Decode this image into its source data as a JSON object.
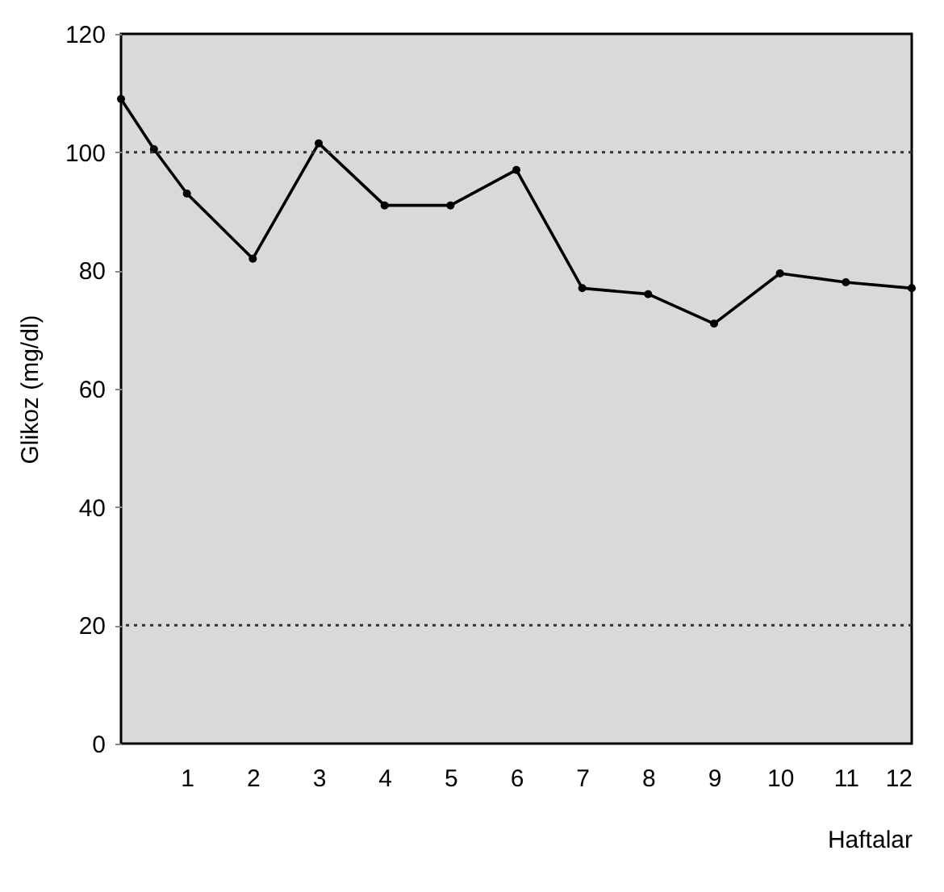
{
  "chart_data": {
    "type": "line",
    "xlabel": "Haftalar",
    "ylabel": "Glikoz (mg/dl)",
    "x": [
      0,
      0.5,
      1,
      2,
      3,
      4,
      5,
      6,
      7,
      8,
      9,
      10,
      11,
      12
    ],
    "series": [
      {
        "color": "#000000",
        "values": [
          109,
          100.5,
          93,
          82,
          101.5,
          91,
          91,
          97,
          77,
          76,
          71,
          79.5,
          78,
          77
        ]
      }
    ],
    "xlim": [
      0,
      12
    ],
    "xticks": [
      1,
      2,
      3,
      4,
      5,
      6,
      7,
      8,
      9,
      10,
      11,
      12
    ],
    "ylim": [
      0,
      120
    ],
    "yticks": [
      0,
      20,
      40,
      60,
      80,
      100,
      120
    ],
    "marker": "circle",
    "line_style": "solid",
    "ref_lines": [
      {
        "axis": "y",
        "value": 100,
        "color": "#333333",
        "line_style": "dotted"
      },
      {
        "axis": "y",
        "value": 20,
        "color": "#333333",
        "line_style": "dotted"
      }
    ]
  }
}
